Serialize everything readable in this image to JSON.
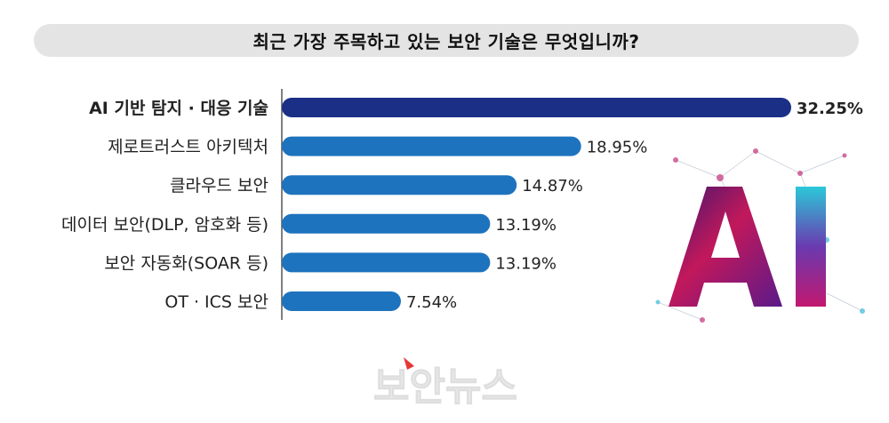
{
  "header": {
    "title": "최근 가장 주목하고 있는 보안 기술은 무엇입니까?"
  },
  "chart_data": {
    "type": "bar",
    "orientation": "horizontal",
    "categories": [
      "AI 기반 탐지 · 대응 기술",
      "제로트러스트 아키텍처",
      "클라우드 보안",
      "데이터 보안(DLP, 암호화 등)",
      "보안 자동화(SOAR 등)",
      "OT · ICS 보안"
    ],
    "values": [
      32.25,
      18.95,
      14.87,
      13.19,
      13.19,
      7.54
    ],
    "value_labels": [
      "32.25%",
      "18.95%",
      "14.87%",
      "13.19%",
      "13.19%",
      "7.54%"
    ],
    "xlim": [
      0,
      32.25
    ],
    "grid": false,
    "colors": {
      "highlight": "#1b2f86",
      "bar": "#1e73be"
    }
  },
  "decor": {
    "art": "ai-letters-art",
    "watermark": "보안뉴스"
  }
}
